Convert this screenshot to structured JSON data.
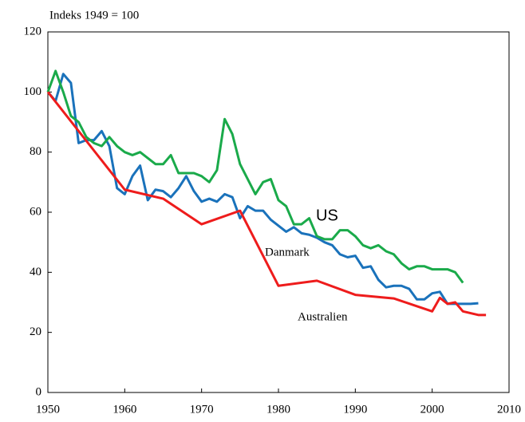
{
  "chart_data": {
    "type": "line",
    "subtitle": "Indeks 1949 = 100",
    "xlim": [
      1950,
      2010
    ],
    "xticks": [
      1950,
      1960,
      1970,
      1980,
      1990,
      2000,
      2010
    ],
    "ylim": [
      0,
      120
    ],
    "yticks": [
      0,
      20,
      40,
      60,
      80,
      100,
      120
    ],
    "series": [
      {
        "name": "Danmark",
        "color": "#1a72bb",
        "x": [
          1950,
          1951,
          1952,
          1953,
          1954,
          1955,
          1956,
          1957,
          1958,
          1959,
          1960,
          1961,
          1962,
          1963,
          1964,
          1965,
          1966,
          1967,
          1968,
          1969,
          1970,
          1971,
          1972,
          1973,
          1974,
          1975,
          1976,
          1977,
          1978,
          1979,
          1980,
          1981,
          1982,
          1983,
          1984,
          1985,
          1986,
          1987,
          1988,
          1989,
          1990,
          1991,
          1992,
          1993,
          1994,
          1995,
          1996,
          1997,
          1998,
          1999,
          2000,
          2001,
          2002,
          2003,
          2004,
          2005,
          2006
        ],
        "values": [
          100,
          97,
          106,
          103,
          83,
          84,
          84,
          87,
          82,
          68,
          66,
          72,
          75.5,
          64,
          67.5,
          67,
          65,
          68,
          72,
          67,
          63.5,
          64.5,
          63.5,
          66,
          65,
          58,
          62,
          60.5,
          60.5,
          57.5,
          55.5,
          53.5,
          55,
          53,
          52.5,
          51.5,
          50,
          49,
          46,
          45,
          45.5,
          41.5,
          42,
          37.5,
          35,
          35.5,
          35.5,
          34.5,
          31,
          31,
          33,
          33.5,
          29.5,
          29.5,
          29.5,
          29.5,
          29.7
        ]
      },
      {
        "name": "US",
        "color": "#1aaa4a",
        "x": [
          1950,
          1951,
          1952,
          1953,
          1954,
          1955,
          1956,
          1957,
          1958,
          1959,
          1960,
          1961,
          1962,
          1963,
          1964,
          1965,
          1966,
          1967,
          1968,
          1969,
          1970,
          1971,
          1972,
          1973,
          1974,
          1975,
          1976,
          1977,
          1978,
          1979,
          1980,
          1981,
          1982,
          1983,
          1984,
          1985,
          1986,
          1987,
          1988,
          1989,
          1990,
          1991,
          1992,
          1993,
          1994,
          1995,
          1996,
          1997,
          1998,
          1999,
          2000,
          2001,
          2002,
          2003,
          2004
        ],
        "values": [
          100,
          107,
          100,
          92,
          90,
          85,
          83,
          82,
          85,
          82,
          80,
          79,
          80,
          78,
          76,
          76,
          79,
          73,
          73,
          73,
          72,
          70,
          74,
          91,
          86,
          76,
          71,
          66,
          70,
          71,
          64,
          62,
          56,
          56,
          58,
          52,
          51,
          51,
          54,
          54,
          52,
          49,
          48,
          49,
          47,
          46,
          43,
          41,
          42,
          42,
          41,
          41,
          41,
          40,
          36.5
        ]
      },
      {
        "name": "Australien",
        "color": "#ee1c1c",
        "x": [
          1950,
          1960,
          1965,
          1970,
          1975,
          1980,
          1985,
          1990,
          1995,
          2000,
          2001,
          2002,
          2003,
          2004,
          2006,
          2007
        ],
        "values": [
          100,
          67.5,
          64.5,
          56,
          60.5,
          35.5,
          37.2,
          32.5,
          31.3,
          27,
          31.5,
          29.5,
          30,
          27,
          25.8,
          25.8
        ]
      }
    ]
  }
}
